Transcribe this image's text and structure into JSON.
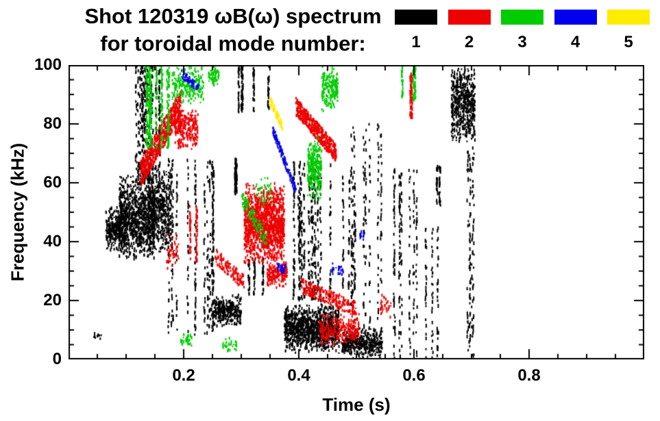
{
  "chart_data": {
    "type": "scatter",
    "title": "Shot 120319 ωB(ω) spectrum",
    "subtitle": "for toroidal mode number:",
    "shot": "120319",
    "xlabel": "Time (s)",
    "ylabel": "Frequency (kHz)",
    "xlim": [
      0.0,
      1.0
    ],
    "ylim": [
      0,
      100
    ],
    "xticks": [
      0.2,
      0.4,
      0.6,
      0.8
    ],
    "xtick_labels": [
      "0.2",
      "0.4",
      "0.6",
      "0.8"
    ],
    "yticks": [
      0,
      20,
      40,
      60,
      80,
      100
    ],
    "ytick_labels": [
      "0",
      "20",
      "40",
      "60",
      "80",
      "100"
    ],
    "x_minor_step": 0.05,
    "y_minor_step": 5,
    "grid": false,
    "legend_position": "top-right",
    "axis_color": "#000000",
    "background_color": "#ffffff",
    "legend": [
      {
        "label": "1",
        "mode": 1,
        "color": "#000000"
      },
      {
        "label": "2",
        "mode": 2,
        "color": "#ee0000"
      },
      {
        "label": "3",
        "mode": 3,
        "color": "#00cc00"
      },
      {
        "label": "4",
        "mode": 4,
        "color": "#0000ee"
      },
      {
        "label": "5",
        "mode": 5,
        "color": "#ffec00"
      }
    ],
    "series": [
      {
        "name": "n=1",
        "color": "#000000",
        "clusters": [
          {
            "style": "scatter",
            "t": [
              0.065,
              0.1
            ],
            "f": [
              36,
              52
            ],
            "n": 320
          },
          {
            "style": "scatter",
            "t": [
              0.088,
              0.15
            ],
            "f": [
              33,
              63
            ],
            "n": 950
          },
          {
            "style": "scatter",
            "t": [
              0.138,
              0.178
            ],
            "f": [
              35,
              66
            ],
            "n": 520
          },
          {
            "style": "streaks",
            "t": [
              0.11,
              0.165
            ],
            "f": [
              60,
              100
            ],
            "n": 400
          },
          {
            "style": "streaks",
            "t": [
              0.17,
              0.26
            ],
            "f": [
              8,
              68
            ],
            "n": 360
          },
          {
            "style": "scatter",
            "t": [
              0.253,
              0.3
            ],
            "f": [
              11,
              22
            ],
            "n": 300
          },
          {
            "style": "streaks",
            "t": [
              0.262,
              0.3
            ],
            "f": [
              55,
              68
            ],
            "n": 70
          },
          {
            "style": "streaks",
            "t": [
              0.29,
              0.38
            ],
            "f": [
              84,
              100
            ],
            "n": 130
          },
          {
            "style": "streaks",
            "t": [
              0.3,
              0.372
            ],
            "f": [
              22,
              34
            ],
            "n": 70
          },
          {
            "style": "scatter",
            "t": [
              0.375,
              0.47
            ],
            "f": [
              2,
              19
            ],
            "n": 1150
          },
          {
            "style": "scatter",
            "t": [
              0.475,
              0.545
            ],
            "f": [
              0,
              11
            ],
            "n": 420
          },
          {
            "style": "streaks",
            "t": [
              0.385,
              0.465
            ],
            "f": [
              20,
              67
            ],
            "n": 400
          },
          {
            "style": "streaks",
            "t": [
              0.468,
              0.5
            ],
            "f": [
              22,
              62
            ],
            "n": 70
          },
          {
            "style": "streaks",
            "t": [
              0.49,
              0.56
            ],
            "f": [
              10,
              80
            ],
            "n": 200
          },
          {
            "style": "streaks",
            "t": [
              0.565,
              0.605
            ],
            "f": [
              0,
              65
            ],
            "n": 200
          },
          {
            "style": "streaks",
            "t": [
              0.61,
              0.66
            ],
            "f": [
              0,
              45
            ],
            "n": 80
          },
          {
            "style": "streaks",
            "t": [
              0.625,
              0.648
            ],
            "f": [
              52,
              66
            ],
            "n": 45
          },
          {
            "style": "scatter",
            "t": [
              0.665,
              0.706
            ],
            "f": [
              73,
              100
            ],
            "n": 560
          },
          {
            "style": "streaks",
            "t": [
              0.693,
              0.712
            ],
            "f": [
              0,
              72
            ],
            "n": 120
          },
          {
            "style": "scatter",
            "t": [
              0.044,
              0.058
            ],
            "f": [
              6,
              10
            ],
            "n": 10
          }
        ]
      },
      {
        "name": "n=2",
        "color": "#ee0000",
        "clusters": [
          {
            "style": "diag",
            "t": [
              0.125,
              0.195
            ],
            "f": [
              63,
              87
            ],
            "spread": 9,
            "n": 620
          },
          {
            "style": "scatter",
            "t": [
              0.185,
              0.225
            ],
            "f": [
              71,
              86
            ],
            "n": 260
          },
          {
            "style": "streaks",
            "t": [
              0.195,
              0.235
            ],
            "f": [
              33,
              52
            ],
            "n": 60
          },
          {
            "style": "diag",
            "t": [
              0.255,
              0.305
            ],
            "f": [
              35,
              26
            ],
            "spread": 5,
            "n": 120
          },
          {
            "style": "scatter",
            "t": [
              0.305,
              0.375
            ],
            "f": [
              32,
              60
            ],
            "n": 1450
          },
          {
            "style": "scatter",
            "t": [
              0.345,
              0.38
            ],
            "f": [
              24,
              34
            ],
            "n": 180
          },
          {
            "style": "diag",
            "t": [
              0.395,
              0.465
            ],
            "f": [
              86,
              70
            ],
            "spread": 6,
            "n": 460
          },
          {
            "style": "diag",
            "t": [
              0.405,
              0.5
            ],
            "f": [
              25,
              17
            ],
            "spread": 5,
            "n": 250
          },
          {
            "style": "scatter",
            "t": [
              0.435,
              0.505
            ],
            "f": [
              4,
              16
            ],
            "n": 280
          },
          {
            "style": "streaks",
            "t": [
              0.585,
              0.605
            ],
            "f": [
              82,
              97
            ],
            "n": 60
          },
          {
            "style": "scatter",
            "t": [
              0.54,
              0.56
            ],
            "f": [
              14,
              22
            ],
            "n": 30
          },
          {
            "style": "scatter",
            "t": [
              0.17,
              0.192
            ],
            "f": [
              30,
              44
            ],
            "n": 45
          }
        ]
      },
      {
        "name": "n=3",
        "color": "#00cc00",
        "clusters": [
          {
            "style": "streaks",
            "t": [
              0.125,
              0.175
            ],
            "f": [
              72,
              100
            ],
            "n": 300
          },
          {
            "style": "scatter",
            "t": [
              0.18,
              0.235
            ],
            "f": [
              86,
              100
            ],
            "n": 220
          },
          {
            "style": "scatter",
            "t": [
              0.243,
              0.262
            ],
            "f": [
              92,
              100
            ],
            "n": 55
          },
          {
            "style": "diag",
            "t": [
              0.3,
              0.345
            ],
            "f": [
              55,
              40
            ],
            "spread": 6,
            "n": 100
          },
          {
            "style": "scatter",
            "t": [
              0.325,
              0.352
            ],
            "f": [
              52,
              62
            ],
            "n": 40
          },
          {
            "style": "scatter",
            "t": [
              0.415,
              0.44
            ],
            "f": [
              53,
              77
            ],
            "n": 260
          },
          {
            "style": "scatter",
            "t": [
              0.44,
              0.468
            ],
            "f": [
              84,
              100
            ],
            "n": 180
          },
          {
            "style": "streaks",
            "t": [
              0.575,
              0.605
            ],
            "f": [
              88,
              100
            ],
            "n": 80
          },
          {
            "style": "scatter",
            "t": [
              0.195,
              0.215
            ],
            "f": [
              4,
              9
            ],
            "n": 35
          },
          {
            "style": "scatter",
            "t": [
              0.268,
              0.292
            ],
            "f": [
              2,
              8
            ],
            "n": 30
          }
        ]
      },
      {
        "name": "n=4",
        "color": "#0000ee",
        "clusters": [
          {
            "style": "diag",
            "t": [
              0.196,
              0.226
            ],
            "f": [
              97,
              92
            ],
            "spread": 3,
            "n": 60
          },
          {
            "style": "diag",
            "t": [
              0.355,
              0.395
            ],
            "f": [
              78,
              57
            ],
            "spread": 3,
            "n": 130
          },
          {
            "style": "scatter",
            "t": [
              0.363,
              0.377
            ],
            "f": [
              29,
              33
            ],
            "n": 30
          },
          {
            "style": "scatter",
            "t": [
              0.458,
              0.478
            ],
            "f": [
              28,
              33
            ],
            "n": 25
          },
          {
            "style": "scatter",
            "t": [
              0.506,
              0.516
            ],
            "f": [
              40,
              45
            ],
            "n": 12
          }
        ]
      },
      {
        "name": "n=5",
        "color": "#ffec00",
        "clusters": [
          {
            "style": "diag",
            "t": [
              0.35,
              0.372
            ],
            "f": [
              88,
              79
            ],
            "spread": 3,
            "n": 65
          }
        ]
      }
    ]
  }
}
